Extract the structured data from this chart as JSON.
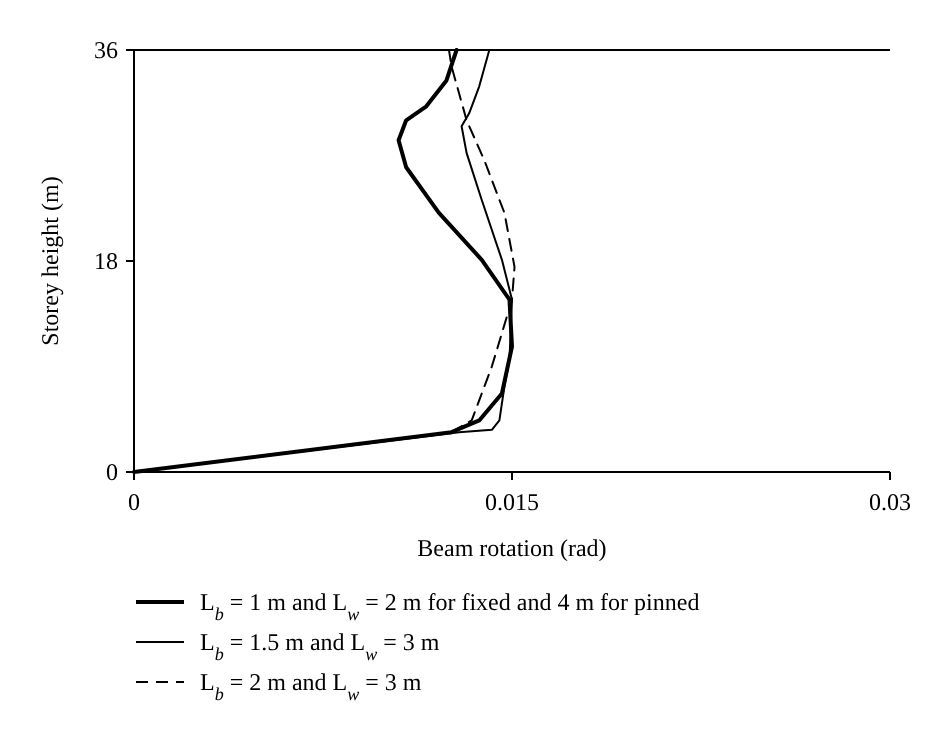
{
  "chart_data": {
    "type": "line",
    "xlabel": "Beam rotation (rad)",
    "ylabel": "Storey height (m)",
    "xlim": [
      0,
      0.03
    ],
    "xticks": [
      0,
      0.015,
      0.03
    ],
    "ylim": [
      0,
      36
    ],
    "yticks": [
      0,
      18,
      36
    ],
    "legend": "bottom",
    "grid": false,
    "marker": "none",
    "series": [
      {
        "name": "L$_{b}$ = 1 m and L$_{w}$ = 2 m for fixed and 4 m for pinned",
        "color": "#000000",
        "line_style": "solid",
        "x": [
          0,
          0.0126,
          0.0137,
          0.0146,
          0.015,
          0.0149,
          0.0138,
          0.0121,
          0.0108,
          0.0105,
          0.0108,
          0.0116,
          0.0124,
          0.0128
        ],
        "values": [
          0,
          3.4,
          4.4,
          6.7,
          10.7,
          14.7,
          18.1,
          22.1,
          26,
          28.3,
          30,
          31.2,
          33.4,
          36
        ]
      },
      {
        "name": "L$_{b}$ = 1.5 m and L$_{w}$ = 3 m",
        "color": "#000000",
        "line_style": "solid",
        "x": [
          0,
          0.0129,
          0.0142,
          0.0145,
          0.0147,
          0.0149,
          0.015,
          0.0146,
          0.0138,
          0.0132,
          0.013,
          0.0133,
          0.0137,
          0.0141
        ],
        "values": [
          0,
          3.4,
          3.6,
          4.4,
          7.3,
          9.6,
          14.7,
          18.1,
          23.2,
          27.2,
          29.5,
          30.6,
          32.9,
          36
        ]
      },
      {
        "name": "L$_{b}$ = 2 m and L$_{w}$ = 3 m",
        "color": "#000000",
        "line_style": "dashed",
        "x": [
          0,
          0.0126,
          0.0134,
          0.0142,
          0.015,
          0.0151,
          0.0147,
          0.0139,
          0.0132,
          0.0126,
          0.0125
        ],
        "values": [
          0,
          3.4,
          4.4,
          9,
          14.7,
          17.5,
          22.1,
          26.6,
          30,
          34.6,
          36
        ]
      }
    ]
  }
}
